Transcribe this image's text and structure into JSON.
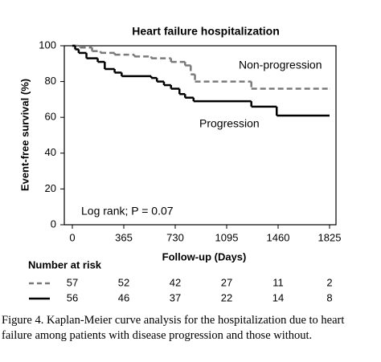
{
  "chart_data": {
    "type": "step",
    "title": "Heart failure hospitalization",
    "xlabel": "Follow-up (Days)",
    "ylabel": "Event-free survival (%)",
    "xlim": [
      0,
      1825
    ],
    "ylim": [
      0,
      100
    ],
    "xticks": [
      0,
      365,
      730,
      1095,
      1460,
      1825
    ],
    "yticks": [
      0,
      20,
      40,
      60,
      80,
      100
    ],
    "annotation": "Log rank; P = 0.07",
    "series": [
      {
        "name": "Non-progression",
        "color": "#7a7a7a",
        "dashed": true,
        "x": [
          0,
          55,
          140,
          200,
          300,
          440,
          560,
          700,
          800,
          840,
          870,
          1270,
          1825
        ],
        "values": [
          100,
          99,
          97,
          96,
          95,
          94,
          93,
          91,
          89,
          84,
          80,
          76,
          76
        ]
      },
      {
        "name": "Progression",
        "color": "#000000",
        "dashed": false,
        "x": [
          0,
          20,
          45,
          100,
          180,
          230,
          300,
          350,
          560,
          600,
          650,
          700,
          760,
          800,
          860,
          1270,
          1450,
          1825
        ],
        "values": [
          100,
          98,
          96,
          93,
          91,
          87,
          85,
          83,
          82,
          80,
          78,
          76,
          73,
          71,
          69,
          66,
          61,
          61
        ]
      }
    ],
    "risk_table": {
      "title": "Number at risk",
      "rows": [
        [
          57,
          52,
          42,
          27,
          11,
          2
        ],
        [
          56,
          46,
          37,
          22,
          14,
          8
        ]
      ]
    }
  },
  "caption_lines": [
    "Figure 4.  Kaplan-Meier curve analysis for the hospitalization due to heart",
    "failure among patients with disease progression and those without."
  ]
}
